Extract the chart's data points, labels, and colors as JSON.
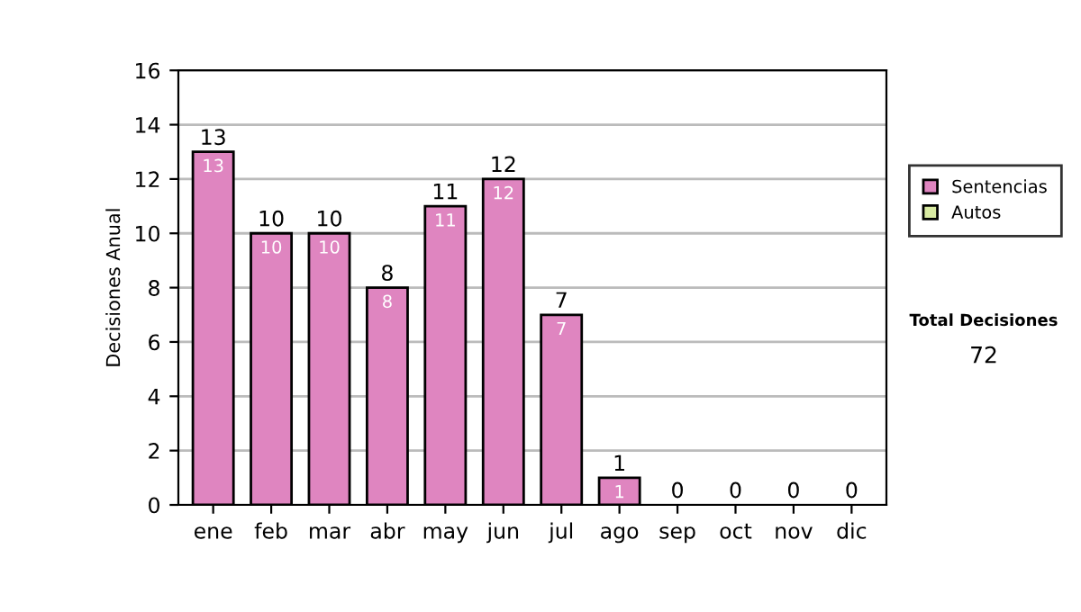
{
  "chart_data": {
    "type": "bar",
    "stacked": true,
    "ylabel": "Decisiones Anual",
    "categories": [
      "ene",
      "feb",
      "mar",
      "abr",
      "may",
      "jun",
      "jul",
      "ago",
      "sep",
      "oct",
      "nov",
      "dic"
    ],
    "series": [
      {
        "name": "Sentencias",
        "color": "#df85c0",
        "values": [
          13,
          10,
          10,
          8,
          11,
          12,
          7,
          1,
          0,
          0,
          0,
          0
        ],
        "value_labels": [
          "13",
          "10",
          "10",
          "8",
          "11",
          "12",
          "7",
          "1",
          null,
          null,
          null,
          null
        ]
      },
      {
        "name": "Autos",
        "color": "#d8eaa2",
        "values": [
          0,
          0,
          0,
          0,
          0,
          0,
          0,
          0,
          0,
          0,
          0,
          0
        ]
      }
    ],
    "totals": [
      "13",
      "10",
      "10",
      "8",
      "11",
      "12",
      "7",
      "1",
      "0",
      "0",
      "0",
      "0"
    ],
    "ylim": [
      0,
      16
    ],
    "yticks": [
      0,
      2,
      4,
      6,
      8,
      10,
      12,
      14,
      16
    ],
    "grid": "y",
    "legend": "right",
    "annotations": [
      "Total Decisiones",
      "72"
    ]
  }
}
